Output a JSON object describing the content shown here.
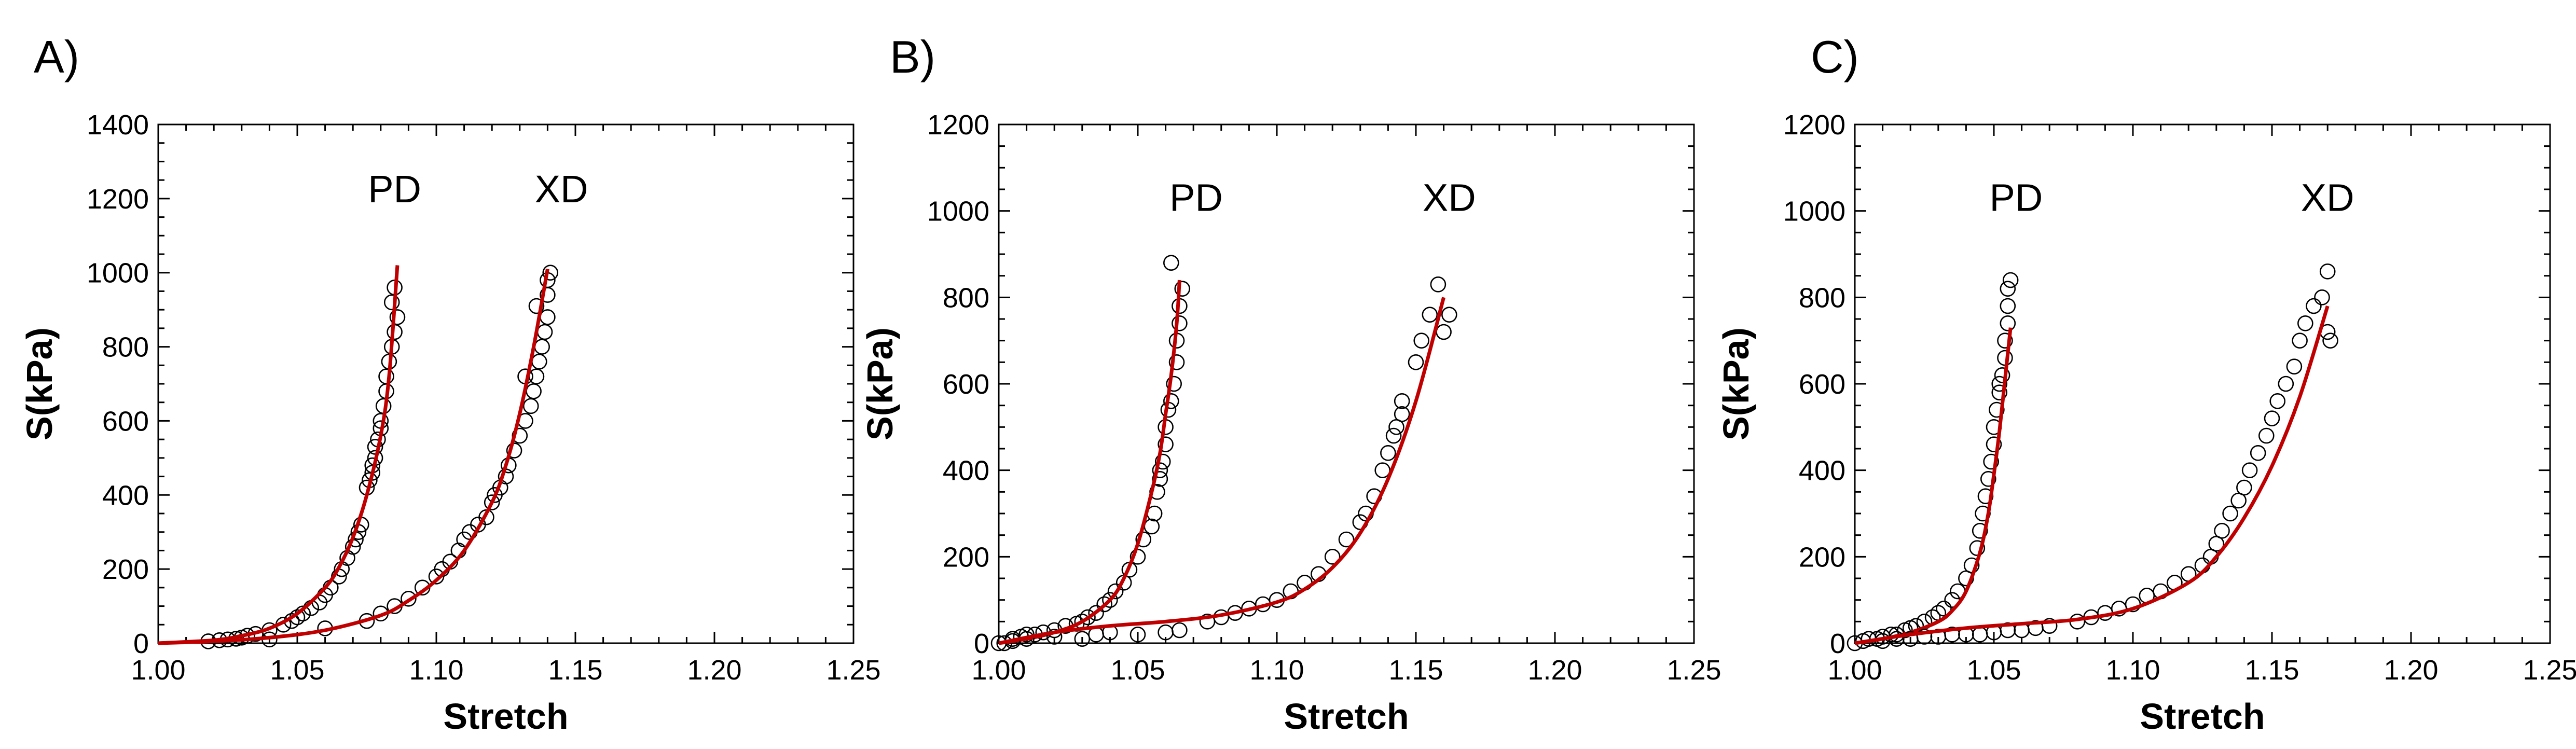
{
  "colors": {
    "fit_line": "#c00000",
    "points": "#000000",
    "axes": "#000000"
  },
  "chart_data": [
    {
      "type": "scatter",
      "panel_label": "A)",
      "xlabel": "Stretch",
      "ylabel": "S(kPa)",
      "xlim": [
        1.0,
        1.25
      ],
      "ylim": [
        0,
        1400
      ],
      "xticks": [
        "1.00",
        "1.05",
        "1.10",
        "1.15",
        "1.20",
        "1.25"
      ],
      "yticks": [
        "0",
        "200",
        "400",
        "600",
        "800",
        "1000",
        "1200",
        "1400"
      ],
      "grid": false,
      "series": [
        {
          "name": "PD",
          "label_at": [
            1.085,
            1190
          ],
          "fit": {
            "x": [
              1.0,
              1.02,
              1.03,
              1.04,
              1.05,
              1.06,
              1.065,
              1.07,
              1.075,
              1.08,
              1.083,
              1.086
            ],
            "y": [
              0,
              8,
              20,
              40,
              80,
              150,
              205,
              285,
              400,
              560,
              720,
              1020
            ]
          },
          "points": {
            "x": [
              1.018,
              1.022,
              1.025,
              1.028,
              1.03,
              1.032,
              1.035,
              1.04,
              1.045,
              1.048,
              1.05,
              1.052,
              1.055,
              1.058,
              1.06,
              1.062,
              1.065,
              1.066,
              1.068,
              1.07,
              1.071,
              1.072,
              1.073,
              1.075,
              1.076,
              1.077,
              1.077,
              1.078,
              1.078,
              1.079,
              1.08,
              1.08,
              1.081,
              1.082,
              1.082,
              1.083,
              1.084,
              1.085,
              1.086,
              1.084,
              1.085
            ],
            "y": [
              5,
              8,
              10,
              12,
              15,
              20,
              25,
              35,
              50,
              60,
              70,
              80,
              95,
              110,
              130,
              150,
              180,
              200,
              230,
              260,
              280,
              300,
              320,
              420,
              440,
              460,
              480,
              500,
              530,
              550,
              580,
              600,
              640,
              680,
              720,
              760,
              800,
              840,
              880,
              920,
              960
            ]
          }
        },
        {
          "name": "XD",
          "label_at": [
            1.145,
            1190
          ],
          "fit": {
            "x": [
              1.0,
              1.02,
              1.04,
              1.06,
              1.08,
              1.09,
              1.1,
              1.11,
              1.12,
              1.125,
              1.13,
              1.135,
              1.14
            ],
            "y": [
              0,
              5,
              15,
              35,
              75,
              115,
              170,
              250,
              380,
              480,
              620,
              800,
              1010
            ]
          },
          "points": {
            "x": [
              1.04,
              1.06,
              1.075,
              1.08,
              1.085,
              1.09,
              1.095,
              1.1,
              1.102,
              1.105,
              1.108,
              1.11,
              1.112,
              1.115,
              1.118,
              1.12,
              1.121,
              1.123,
              1.125,
              1.126,
              1.128,
              1.13,
              1.132,
              1.134,
              1.135,
              1.136,
              1.137,
              1.138,
              1.139,
              1.14,
              1.14,
              1.14,
              1.141,
              1.136,
              1.132
            ],
            "y": [
              10,
              40,
              60,
              80,
              100,
              120,
              150,
              180,
              200,
              220,
              250,
              280,
              300,
              320,
              340,
              380,
              400,
              420,
              450,
              480,
              520,
              560,
              600,
              640,
              680,
              720,
              760,
              800,
              840,
              880,
              940,
              980,
              1000,
              910,
              720
            ]
          }
        }
      ]
    },
    {
      "type": "scatter",
      "panel_label": "B)",
      "xlabel": "Stretch",
      "ylabel": "S(kPa)",
      "xlim": [
        1.0,
        1.25
      ],
      "ylim": [
        0,
        1200
      ],
      "xticks": [
        "1.00",
        "1.05",
        "1.10",
        "1.15",
        "1.20",
        "1.25"
      ],
      "yticks": [
        "0",
        "200",
        "400",
        "600",
        "800",
        "1000",
        "1200"
      ],
      "grid": false,
      "series": [
        {
          "name": "PD",
          "label_at": [
            1.071,
            1000
          ],
          "fit": {
            "x": [
              1.0,
              1.01,
              1.02,
              1.03,
              1.04,
              1.045,
              1.05,
              1.055,
              1.058,
              1.06,
              1.062,
              1.064,
              1.065
            ],
            "y": [
              0,
              10,
              25,
              50,
              100,
              150,
              230,
              350,
              440,
              530,
              620,
              740,
              840
            ]
          },
          "points": {
            "x": [
              1.002,
              1.005,
              1.008,
              1.01,
              1.013,
              1.016,
              1.02,
              1.024,
              1.028,
              1.03,
              1.032,
              1.035,
              1.038,
              1.04,
              1.042,
              1.045,
              1.047,
              1.05,
              1.052,
              1.055,
              1.056,
              1.057,
              1.058,
              1.059,
              1.06,
              1.06,
              1.061,
              1.062,
              1.063,
              1.064,
              1.064,
              1.065,
              1.065,
              1.066,
              1.062,
              1.058
            ],
            "y": [
              0,
              10,
              15,
              20,
              20,
              25,
              30,
              40,
              45,
              50,
              60,
              70,
              90,
              100,
              120,
              140,
              170,
              200,
              240,
              270,
              300,
              350,
              380,
              420,
              460,
              500,
              540,
              560,
              600,
              650,
              700,
              740,
              780,
              820,
              880,
              400
            ]
          }
        },
        {
          "name": "XD",
          "label_at": [
            1.162,
            1000
          ],
          "fit": {
            "x": [
              1.0,
              1.02,
              1.04,
              1.06,
              1.08,
              1.1,
              1.11,
              1.12,
              1.13,
              1.14,
              1.15,
              1.16
            ],
            "y": [
              0,
              25,
              40,
              50,
              65,
              95,
              125,
              175,
              255,
              380,
              560,
              800
            ]
          },
          "points": {
            "x": [
              1.0,
              1.005,
              1.01,
              1.02,
              1.03,
              1.035,
              1.04,
              1.05,
              1.06,
              1.065,
              1.075,
              1.08,
              1.085,
              1.09,
              1.095,
              1.1,
              1.105,
              1.11,
              1.115,
              1.12,
              1.125,
              1.13,
              1.132,
              1.135,
              1.138,
              1.14,
              1.142,
              1.143,
              1.145,
              1.145,
              1.15,
              1.152,
              1.155,
              1.158,
              1.16,
              1.162
            ],
            "y": [
              0,
              5,
              10,
              15,
              10,
              20,
              25,
              20,
              25,
              30,
              50,
              60,
              70,
              80,
              90,
              100,
              120,
              140,
              160,
              200,
              240,
              280,
              300,
              340,
              400,
              440,
              480,
              500,
              530,
              560,
              650,
              700,
              760,
              830,
              720,
              760
            ]
          }
        }
      ]
    },
    {
      "type": "scatter",
      "panel_label": "C)",
      "xlabel": "Stretch",
      "ylabel": "S(kPa)",
      "xlim": [
        1.0,
        1.25
      ],
      "ylim": [
        0,
        1200
      ],
      "xticks": [
        "1.00",
        "1.05",
        "1.10",
        "1.15",
        "1.20",
        "1.25"
      ],
      "yticks": [
        "0",
        "200",
        "400",
        "600",
        "800",
        "1000",
        "1200"
      ],
      "grid": false,
      "series": [
        {
          "name": "PD",
          "label_at": [
            1.058,
            1000
          ],
          "fit": {
            "x": [
              1.0,
              1.01,
              1.02,
              1.03,
              1.035,
              1.04,
              1.045,
              1.048,
              1.05,
              1.052,
              1.054,
              1.056
            ],
            "y": [
              0,
              10,
              25,
              50,
              75,
              120,
              210,
              300,
              390,
              490,
              610,
              730
            ]
          },
          "points": {
            "x": [
              1.0,
              1.003,
              1.005,
              1.008,
              1.01,
              1.013,
              1.015,
              1.018,
              1.02,
              1.022,
              1.025,
              1.028,
              1.03,
              1.032,
              1.035,
              1.037,
              1.04,
              1.042,
              1.044,
              1.045,
              1.046,
              1.047,
              1.048,
              1.049,
              1.05,
              1.05,
              1.051,
              1.052,
              1.053,
              1.054,
              1.054,
              1.055,
              1.055,
              1.056,
              1.055,
              1.052
            ],
            "y": [
              0,
              5,
              10,
              10,
              15,
              20,
              20,
              30,
              35,
              40,
              50,
              60,
              70,
              80,
              100,
              120,
              150,
              180,
              220,
              260,
              300,
              340,
              380,
              420,
              460,
              500,
              540,
              580,
              620,
              660,
              700,
              740,
              780,
              840,
              820,
              600
            ]
          }
        },
        {
          "name": "XD",
          "label_at": [
            1.17,
            1000
          ],
          "fit": {
            "x": [
              1.0,
              1.02,
              1.04,
              1.06,
              1.08,
              1.1,
              1.12,
              1.13,
              1.14,
              1.15,
              1.16,
              1.17
            ],
            "y": [
              0,
              20,
              35,
              45,
              55,
              80,
              140,
              200,
              290,
              410,
              570,
              780
            ]
          },
          "points": {
            "x": [
              1.01,
              1.015,
              1.02,
              1.025,
              1.03,
              1.035,
              1.04,
              1.045,
              1.05,
              1.055,
              1.06,
              1.065,
              1.07,
              1.08,
              1.085,
              1.09,
              1.095,
              1.1,
              1.105,
              1.11,
              1.115,
              1.12,
              1.125,
              1.128,
              1.13,
              1.132,
              1.135,
              1.138,
              1.14,
              1.142,
              1.145,
              1.148,
              1.15,
              1.152,
              1.155,
              1.158,
              1.16,
              1.162,
              1.165,
              1.168,
              1.17,
              1.17,
              1.171
            ],
            "y": [
              5,
              10,
              10,
              15,
              15,
              20,
              20,
              20,
              25,
              30,
              30,
              35,
              40,
              50,
              60,
              70,
              80,
              90,
              110,
              120,
              140,
              160,
              180,
              200,
              230,
              260,
              300,
              330,
              360,
              400,
              440,
              480,
              520,
              560,
              600,
              640,
              700,
              740,
              780,
              800,
              860,
              720,
              700
            ]
          }
        }
      ]
    }
  ]
}
